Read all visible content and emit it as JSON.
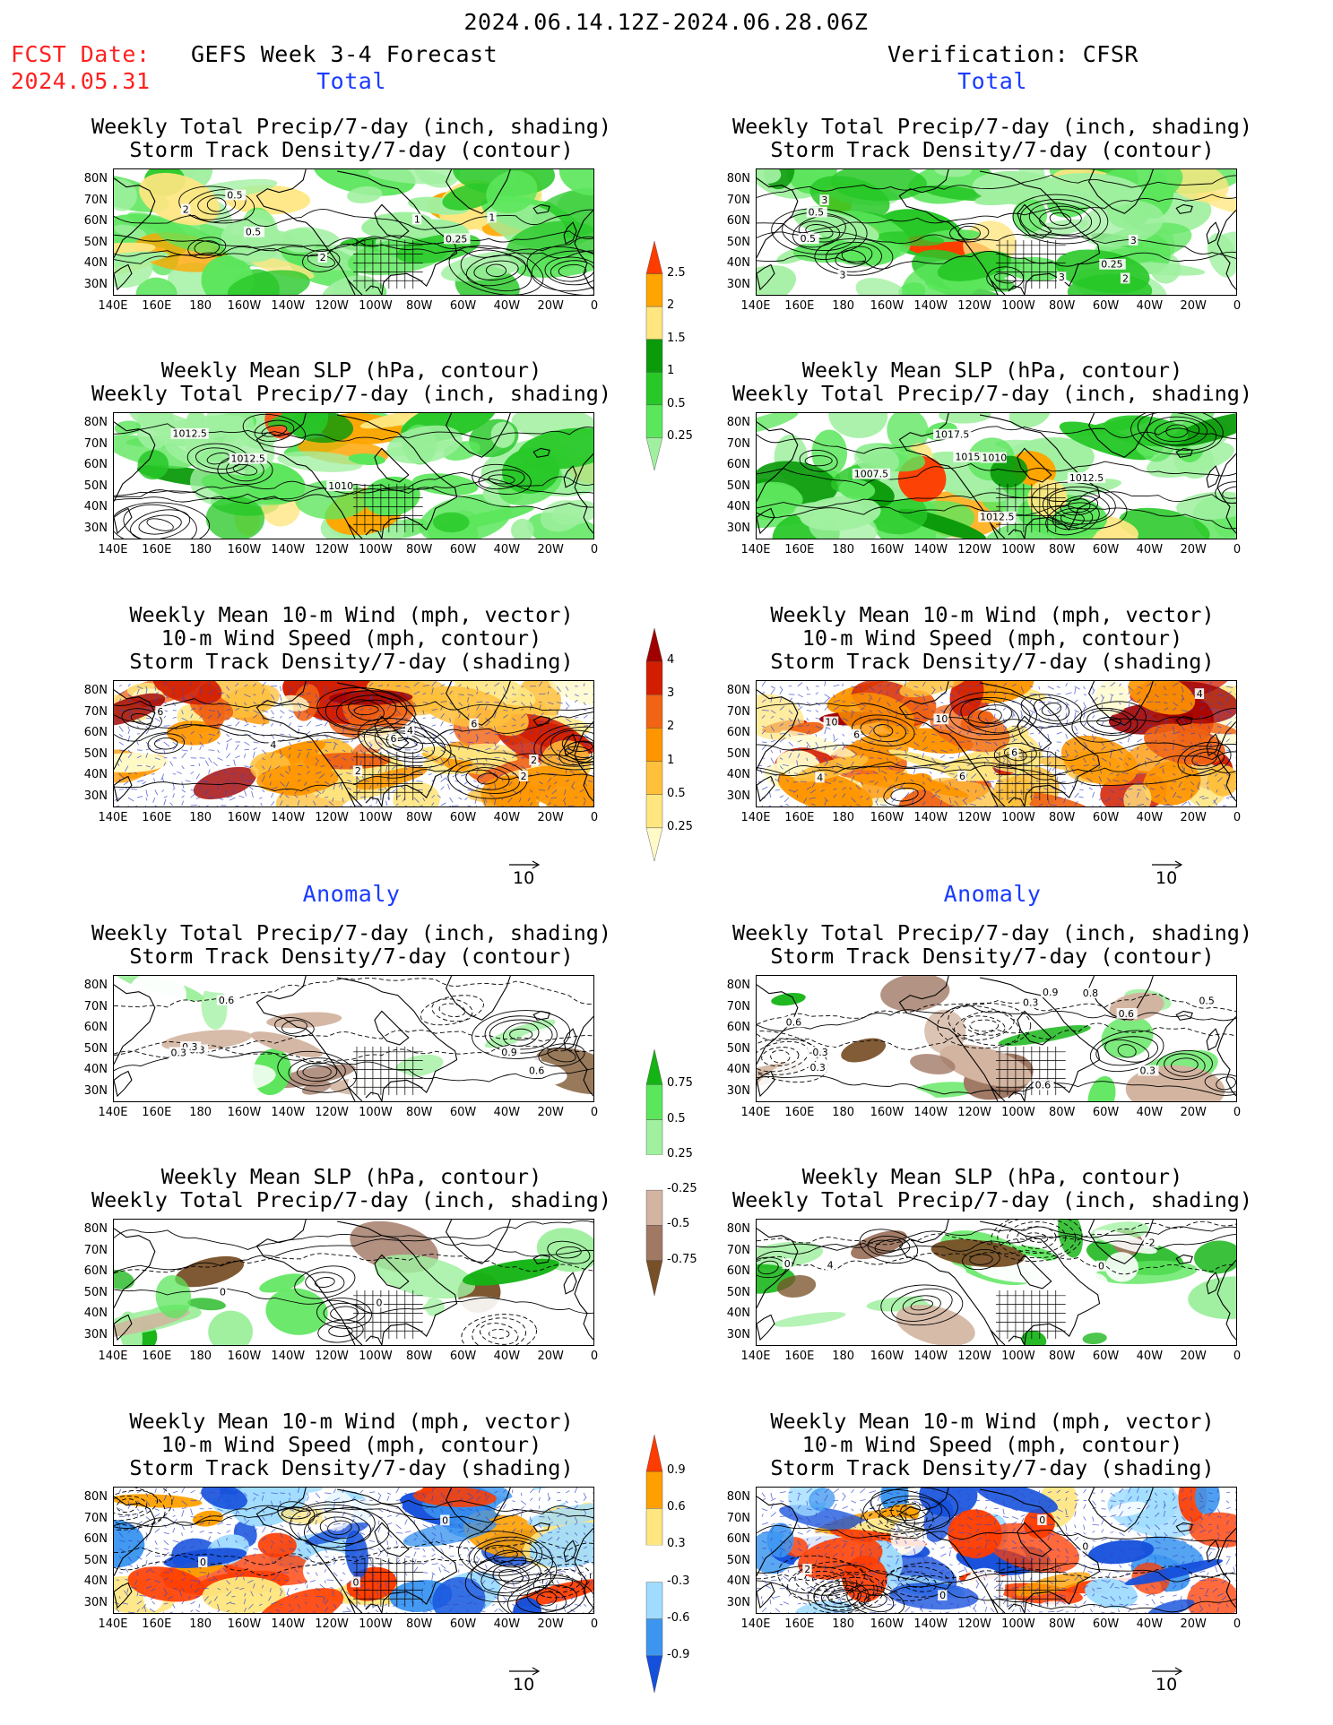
{
  "header": {
    "period": "2024.06.14.12Z-2024.06.28.06Z",
    "fcst_label": "FCST Date:",
    "fcst_date": "2024.05.31",
    "left_title": "GEFS Week 3-4 Forecast",
    "right_title": "Verification: CFSR"
  },
  "sections": {
    "total": "Total",
    "anomaly": "Anomaly"
  },
  "panel_titles": {
    "precip": [
      "Weekly Total Precip/7-day (inch, shading)",
      "Storm Track Density/7-day (contour)"
    ],
    "slp": [
      "Weekly Mean SLP (hPa, contour)",
      "Weekly Total Precip/7-day (inch, shading)"
    ],
    "wind": [
      "Weekly Mean 10-m Wind (mph, vector)",
      "10-m Wind Speed (mph, contour)",
      "Storm Track Density/7-day (shading)"
    ]
  },
  "lat_labels": [
    "80N",
    "70N",
    "60N",
    "50N",
    "40N",
    "30N"
  ],
  "lon_labels": [
    "140E",
    "160E",
    "180",
    "160W",
    "140W",
    "120W",
    "100W",
    "80W",
    "60W",
    "40W",
    "20W",
    "0"
  ],
  "vector_reference": "10",
  "contour_labels": {
    "f_tot_precip": [
      "2",
      "0.25",
      "0.5",
      "1",
      "1",
      "2",
      "0.5"
    ],
    "v_tot_precip": [
      "0.25",
      "0.5",
      "2",
      "3",
      "3",
      "3",
      "3",
      "0.5"
    ],
    "f_tot_slp": [
      "1010",
      "1012.5",
      "1012.5"
    ],
    "v_tot_slp": [
      "1007.5",
      "1017.5",
      "1015",
      "1010",
      "1012.5",
      "1012.5"
    ],
    "f_tot_wind": [
      "2",
      "2",
      "2",
      "6",
      "4",
      "6",
      "4",
      "6"
    ],
    "v_tot_wind": [
      "6",
      "4",
      "4",
      "6",
      "10",
      "6",
      "10"
    ],
    "f_anom_precip": [
      "0.9",
      "0.6",
      "0.3",
      "0.3",
      "0.3",
      "0.6"
    ],
    "v_anom_precip": [
      "0.5",
      "0.6",
      "0.6",
      "0.3",
      "0.3",
      "0.3",
      "0.9",
      "0.6",
      "-0.3",
      "0.8"
    ],
    "f_anom_slp": [
      "0",
      "0"
    ],
    "v_anom_slp": [
      "4",
      "0",
      "0",
      "-2"
    ],
    "f_anom_wind": [
      "0",
      "0",
      "0"
    ],
    "v_anom_wind": [
      "0",
      "2",
      "0",
      "0"
    ]
  },
  "colorbars": {
    "total_precip": {
      "levels": [
        "0.25",
        "0.5",
        "1",
        "1.5",
        "2",
        "2.5"
      ],
      "colors": [
        "#a0f0a0",
        "#5ce65c",
        "#28c828",
        "#0a9a0a",
        "#ffe680",
        "#ffa500",
        "#ff3c00"
      ]
    },
    "total_storm": {
      "levels": [
        "0.25",
        "0.5",
        "1",
        "2",
        "3",
        "4"
      ],
      "colors": [
        "#fffac8",
        "#ffe680",
        "#ffc03c",
        "#ff9600",
        "#f06414",
        "#d21e00",
        "#a00000"
      ]
    },
    "anom_precip": {
      "levels": [
        "-0.75",
        "-0.5",
        "-0.25",
        "0.25",
        "0.5",
        "0.75"
      ],
      "colors": [
        "#785028",
        "#a07864",
        "#d2b4a0",
        "#ffffff",
        "#a0f0a0",
        "#5ce65c",
        "#14b414"
      ]
    },
    "anom_storm": {
      "levels": [
        "-0.9",
        "-0.6",
        "-0.3",
        "0.3",
        "0.6",
        "0.9"
      ],
      "colors": [
        "#1450dc",
        "#3c96f0",
        "#a0dcff",
        "#ffffff",
        "#ffe680",
        "#ffa000",
        "#ff3c00"
      ]
    }
  }
}
